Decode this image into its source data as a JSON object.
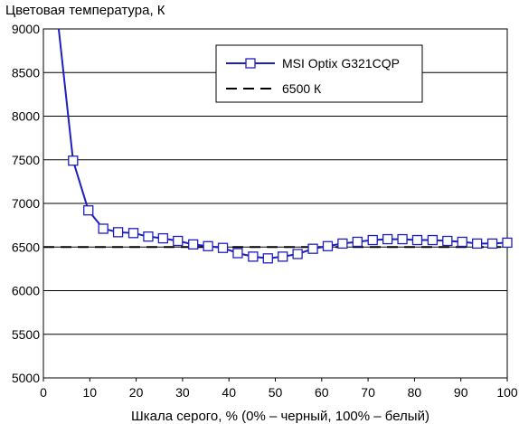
{
  "chart_data": {
    "type": "line",
    "title": "",
    "ylabel": "Цветовая температура, К",
    "xlabel": "Шкала серого, % (0% – черный, 100% – белый)",
    "xlim": [
      0,
      100
    ],
    "ylim": [
      5000,
      9000
    ],
    "xticks": [
      "0",
      "10",
      "20",
      "30",
      "40",
      "50",
      "60",
      "70",
      "80",
      "90",
      "100"
    ],
    "yticks": [
      "5000",
      "5500",
      "6000",
      "6500",
      "7000",
      "7500",
      "8000",
      "8500",
      "9000"
    ],
    "grid": "horizontal",
    "legend_position": "top-right",
    "series": [
      {
        "name": "MSI Optix G321CQP",
        "color": "#1f1fbf",
        "marker": "open-square",
        "x": [
          3.2,
          6.4,
          9.7,
          12.9,
          16.1,
          19.4,
          22.6,
          25.8,
          29.0,
          32.3,
          35.5,
          38.7,
          41.9,
          45.2,
          48.4,
          51.6,
          54.8,
          58.1,
          61.3,
          64.5,
          67.7,
          71.0,
          74.2,
          77.4,
          80.6,
          83.9,
          87.1,
          90.3,
          93.5,
          96.8,
          100
        ],
        "y": [
          9050,
          7490,
          6920,
          6710,
          6670,
          6660,
          6620,
          6600,
          6570,
          6530,
          6510,
          6490,
          6430,
          6390,
          6370,
          6390,
          6420,
          6480,
          6510,
          6540,
          6560,
          6580,
          6590,
          6590,
          6580,
          6580,
          6570,
          6560,
          6540,
          6540,
          6550
        ],
        "marker_start_index": 1
      },
      {
        "name": "6500 К",
        "color": "#000000",
        "dash": "dashed",
        "x": [
          0,
          100
        ],
        "y": [
          6500,
          6500
        ]
      }
    ]
  }
}
